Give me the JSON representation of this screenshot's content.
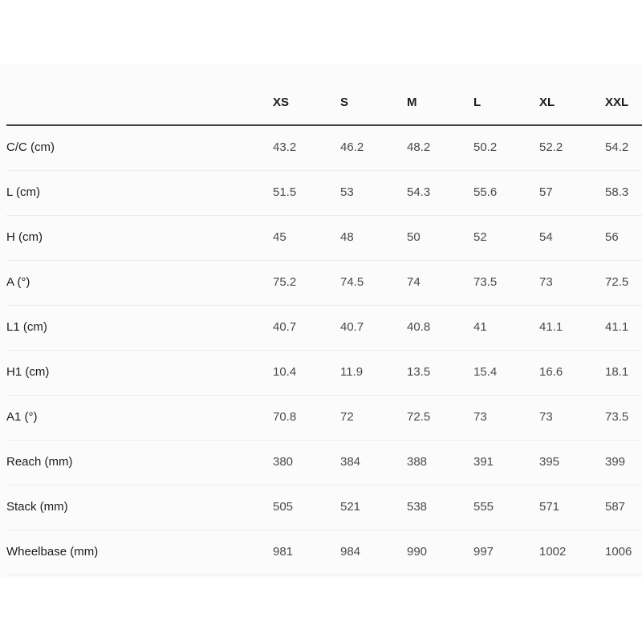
{
  "table": {
    "columns": [
      "XS",
      "S",
      "M",
      "L",
      "XL",
      "XXL"
    ],
    "rows": [
      {
        "label": "C/C (cm)",
        "values": [
          "43.2",
          "46.2",
          "48.2",
          "50.2",
          "52.2",
          "54.2"
        ]
      },
      {
        "label": "L (cm)",
        "values": [
          "51.5",
          "53",
          "54.3",
          "55.6",
          "57",
          "58.3"
        ]
      },
      {
        "label": "H (cm)",
        "values": [
          "45",
          "48",
          "50",
          "52",
          "54",
          "56"
        ]
      },
      {
        "label": "A (°)",
        "values": [
          "75.2",
          "74.5",
          "74",
          "73.5",
          "73",
          "72.5"
        ]
      },
      {
        "label": "L1 (cm)",
        "values": [
          "40.7",
          "40.7",
          "40.8",
          "41",
          "41.1",
          "41.1"
        ]
      },
      {
        "label": "H1 (cm)",
        "values": [
          "10.4",
          "11.9",
          "13.5",
          "15.4",
          "16.6",
          "18.1"
        ]
      },
      {
        "label": "A1 (°)",
        "values": [
          "70.8",
          "72",
          "72.5",
          "73",
          "73",
          "73.5"
        ]
      },
      {
        "label": "Reach (mm)",
        "values": [
          "380",
          "384",
          "388",
          "391",
          "395",
          "399"
        ]
      },
      {
        "label": "Stack (mm)",
        "values": [
          "505",
          "521",
          "538",
          "555",
          "571",
          "587"
        ]
      },
      {
        "label": "Wheelbase (mm)",
        "values": [
          "981",
          "984",
          "990",
          "997",
          "1002",
          "1006"
        ]
      }
    ]
  }
}
